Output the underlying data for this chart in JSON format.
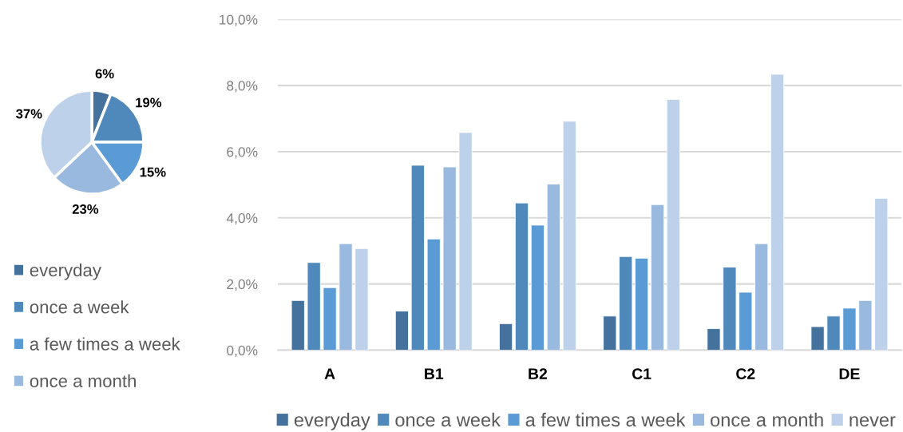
{
  "chart_data": [
    {
      "type": "pie",
      "categories": [
        "everyday",
        "once a week",
        "a few times a week",
        "once a month",
        null
      ],
      "values": [
        6,
        19,
        15,
        23,
        37
      ],
      "colors": [
        "#44729d",
        "#4f88bb",
        "#5b9bd5",
        "#9ab9df",
        "#bdd1ea"
      ],
      "value_labels": [
        "6%",
        "19%",
        "15%",
        "23%",
        "37%"
      ],
      "legend": "bottom"
    },
    {
      "type": "bar",
      "categories": [
        "A",
        "B1",
        "B2",
        "C1",
        "C2",
        "DE"
      ],
      "series": [
        {
          "name": "everyday",
          "color": "#44729d",
          "values": [
            1.5,
            1.18,
            0.8,
            1.03,
            0.65,
            0.71
          ]
        },
        {
          "name": "once a week",
          "color": "#4f88bb",
          "values": [
            2.65,
            5.59,
            4.45,
            2.83,
            2.51,
            1.03
          ]
        },
        {
          "name": "a few times a week",
          "color": "#5b9bd5",
          "values": [
            1.89,
            3.36,
            3.78,
            2.78,
            1.75,
            1.27
          ]
        },
        {
          "name": "once a month",
          "color": "#9ab9df",
          "values": [
            3.22,
            5.54,
            5.02,
            4.4,
            3.22,
            1.5
          ]
        },
        {
          "name": "never",
          "color": "#bdd1ea",
          "values": [
            3.07,
            6.58,
            6.92,
            7.58,
            8.34,
            4.59
          ]
        }
      ],
      "ylim": [
        0,
        10
      ],
      "yticks": [
        {
          "value": 0,
          "label": "0,0%"
        },
        {
          "value": 2,
          "label": "2,0%"
        },
        {
          "value": 4,
          "label": "4,0%"
        },
        {
          "value": 6,
          "label": "6,0%"
        },
        {
          "value": 8,
          "label": "8,0%"
        },
        {
          "value": 10,
          "label": "10,0%"
        }
      ],
      "grid": "y",
      "legend": "bottom"
    }
  ]
}
